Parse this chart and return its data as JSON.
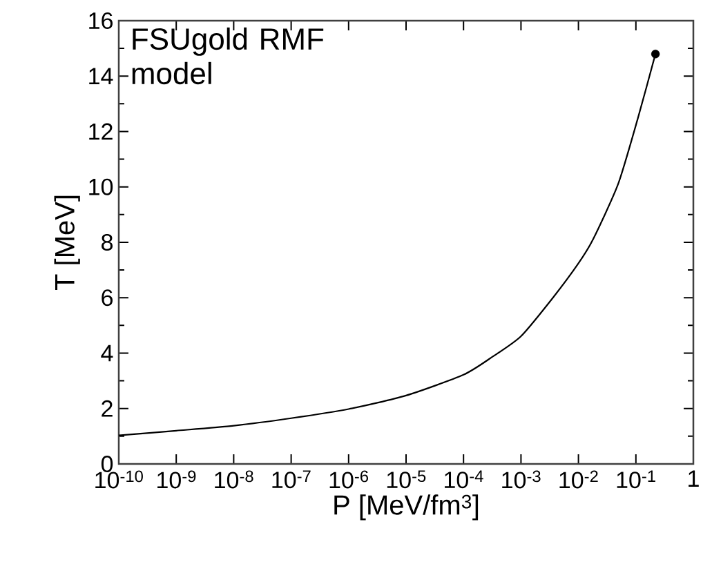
{
  "chart_data": {
    "type": "line",
    "xlabel": "P [MeV/fm$^{3}$]",
    "ylabel": "T [MeV]",
    "annotations": [
      "FSUgold RMF model"
    ],
    "log": "x",
    "marker": "none",
    "line_style": "solid",
    "grid": false,
    "xlim": [
      1e-10,
      1
    ],
    "ylim": [
      0,
      16
    ],
    "xticks": [
      {
        "value": 1e-10,
        "label": "10$^{-10}$"
      },
      {
        "value": 1e-09,
        "label": "10$^{-9}$"
      },
      {
        "value": 1e-08,
        "label": "10$^{-8}$"
      },
      {
        "value": 1e-07,
        "label": "10$^{-7}$"
      },
      {
        "value": 1e-06,
        "label": "10$^{-6}$"
      },
      {
        "value": 1e-05,
        "label": "10$^{-5}$"
      },
      {
        "value": 0.0001,
        "label": "10$^{-4}$"
      },
      {
        "value": 0.001,
        "label": "10$^{-3}$"
      },
      {
        "value": 0.01,
        "label": "10$^{-2}$"
      },
      {
        "value": 0.1,
        "label": "10$^{-1}$"
      },
      {
        "value": 1,
        "label": "1"
      }
    ],
    "yticks": [
      0,
      2,
      4,
      6,
      8,
      10,
      12,
      14,
      16
    ],
    "series": [
      {
        "color": "#000000",
        "x": [
          1e-10,
          1e-09,
          1e-08,
          1e-07,
          1e-06,
          1e-05,
          0.0001,
          0.00032,
          0.001,
          0.0036,
          0.01,
          0.018,
          0.049,
          0.109,
          0.219
        ],
        "values": [
          1.03,
          1.2,
          1.38,
          1.65,
          1.98,
          2.47,
          3.22,
          3.87,
          4.61,
          6.0,
          7.24,
          8.11,
          10.1,
          12.5,
          14.8
        ]
      },
      {
        "type": "scatter",
        "marker": "circle",
        "color": "#000000",
        "x": [
          0.219
        ],
        "values": [
          14.8
        ]
      }
    ]
  }
}
